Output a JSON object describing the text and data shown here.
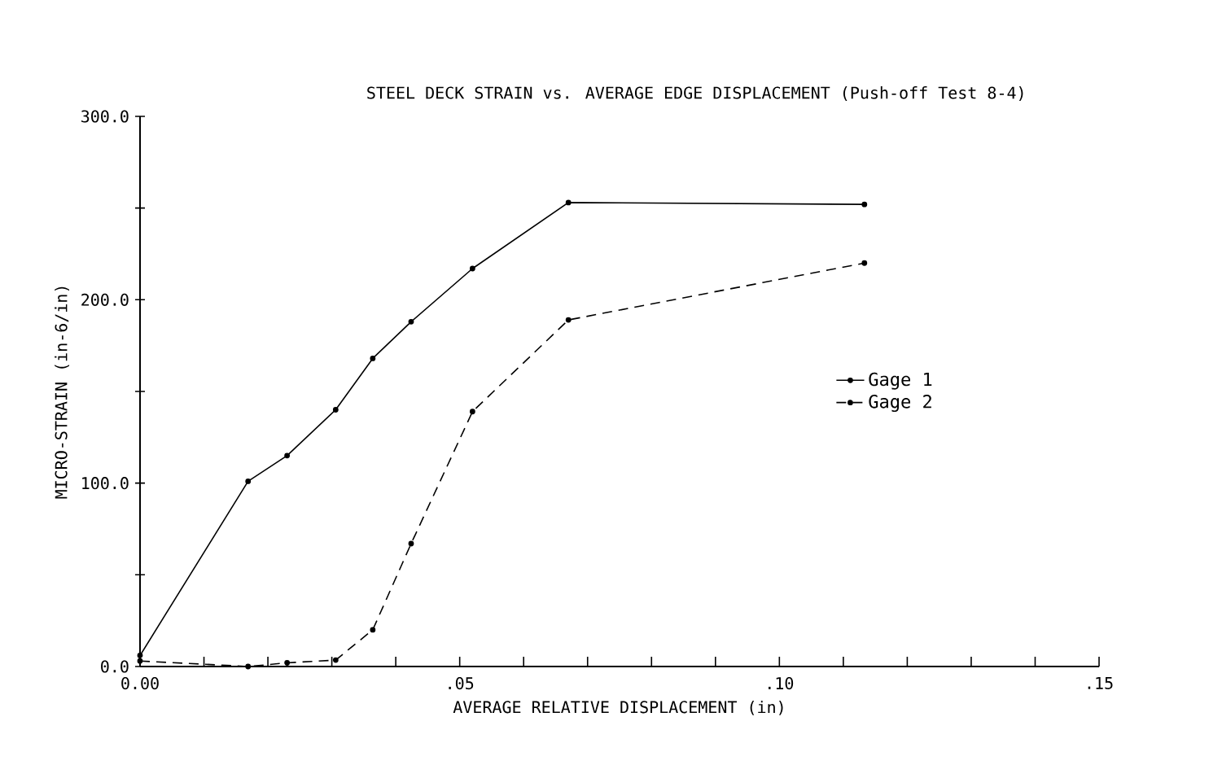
{
  "chart_data": {
    "type": "line",
    "title": "STEEL DECK STRAIN vs. AVERAGE EDGE DISPLACEMENT (Push-off Test 8-4)",
    "xlabel": "AVERAGE  RELATIVE DISPLACEMENT (in)",
    "ylabel": "MICRO-STRAIN (in-6/in)",
    "x": [
      0,
      0.0169,
      0.023,
      0.0306,
      0.0364,
      0.0424,
      0.052,
      0.067,
      0.1133
    ],
    "series": [
      {
        "name": "Gage 1",
        "color": "#000000",
        "line_style": "solid",
        "values": [
          6,
          101,
          115,
          140,
          168,
          188,
          217,
          253,
          252
        ]
      },
      {
        "name": "Gage 2",
        "color": "#000000",
        "line_style": "dashed",
        "values": [
          3,
          0,
          2,
          3.5,
          20,
          67,
          139,
          189,
          220
        ]
      }
    ],
    "xlim": [
      0,
      0.15
    ],
    "ylim": [
      0,
      300
    ],
    "xticks": [
      {
        "value": 0,
        "label": "0.00"
      },
      {
        "value": 0.01,
        "label": null
      },
      {
        "value": 0.02,
        "label": null
      },
      {
        "value": 0.03,
        "label": null
      },
      {
        "value": 0.04,
        "label": null
      },
      {
        "value": 0.05,
        "label": ".05"
      },
      {
        "value": 0.06,
        "label": null
      },
      {
        "value": 0.07,
        "label": null
      },
      {
        "value": 0.08,
        "label": null
      },
      {
        "value": 0.09,
        "label": null
      },
      {
        "value": 0.1,
        "label": ".10"
      },
      {
        "value": 0.11,
        "label": null
      },
      {
        "value": 0.12,
        "label": null
      },
      {
        "value": 0.13,
        "label": null
      },
      {
        "value": 0.14,
        "label": null
      },
      {
        "value": 0.15,
        "label": ".15"
      }
    ],
    "yticks": [
      {
        "value": 0,
        "label": "0.0"
      },
      {
        "value": 50,
        "label": null
      },
      {
        "value": 100,
        "label": "100.0"
      },
      {
        "value": 150,
        "label": null
      },
      {
        "value": 200,
        "label": "200.0"
      },
      {
        "value": 250,
        "label": null
      },
      {
        "value": 300,
        "label": "300.0"
      }
    ],
    "legend": "right",
    "marker": "circle",
    "grid": false
  }
}
